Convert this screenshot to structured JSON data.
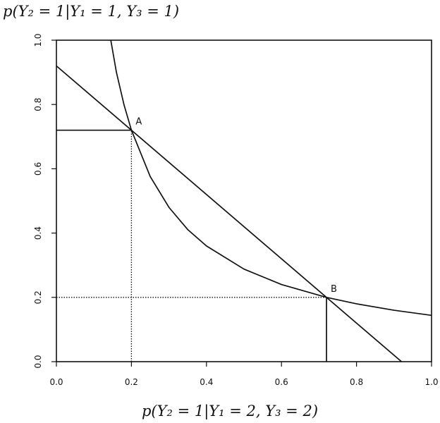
{
  "chart_data": {
    "type": "line",
    "ylabel": "p(Y₂ = 1|Y₁ = 1, Y₃ = 1)",
    "xlabel": "p(Y₂ = 1|Y₁ = 2, Y₃ = 2)",
    "xlim": [
      0,
      1
    ],
    "ylim": [
      0,
      1
    ],
    "xticks": [
      "0.0",
      "0.2",
      "0.4",
      "0.6",
      "0.8",
      "1.0"
    ],
    "yticks": [
      "0.0",
      "0.2",
      "0.4",
      "0.6",
      "0.8",
      "1.0"
    ],
    "grid": false,
    "series": [
      {
        "style": "solid",
        "x": [
          0.145,
          0.16,
          0.18,
          0.2,
          0.25,
          0.3,
          0.35,
          0.4,
          0.5,
          0.6,
          0.72,
          0.8,
          0.9,
          1.0
        ],
        "y": [
          1.0,
          0.9,
          0.8,
          0.72,
          0.576,
          0.48,
          0.411,
          0.36,
          0.288,
          0.24,
          0.2,
          0.18,
          0.16,
          0.144
        ]
      },
      {
        "style": "solid",
        "x": [
          0.0,
          0.92
        ],
        "y": [
          0.92,
          0.0
        ]
      },
      {
        "style": "solid",
        "x": [
          0.0,
          0.2
        ],
        "y": [
          0.72,
          0.72
        ]
      },
      {
        "style": "dotted",
        "x": [
          0.2,
          0.2
        ],
        "y": [
          0.0,
          0.72
        ]
      },
      {
        "style": "dotted",
        "x": [
          0.0,
          0.72
        ],
        "y": [
          0.2,
          0.2
        ]
      },
      {
        "style": "solid",
        "x": [
          0.72,
          0.72
        ],
        "y": [
          0.0,
          0.2
        ]
      }
    ],
    "annotations": [
      {
        "label": "A",
        "x": 0.2,
        "y": 0.72
      },
      {
        "label": "B",
        "x": 0.72,
        "y": 0.2
      }
    ]
  }
}
